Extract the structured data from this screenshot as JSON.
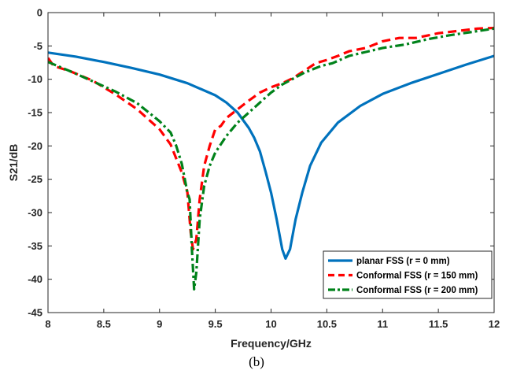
{
  "caption": "(b)",
  "chart_data": {
    "type": "line",
    "xlabel": "Frequency/GHz",
    "ylabel": "S21/dB",
    "xlim": [
      8,
      12
    ],
    "ylim": [
      -45,
      0
    ],
    "xticks": [
      "8",
      "8.5",
      "9",
      "9.5",
      "10",
      "10.5",
      "11",
      "11.5",
      "12"
    ],
    "yticks": [
      "0",
      "-5",
      "-10",
      "-15",
      "-20",
      "-25",
      "-30",
      "-35",
      "-40",
      "-45"
    ],
    "grid": false,
    "legend_position": "bottom-right",
    "series": [
      {
        "name": "planar FSS (r = 0 mm)",
        "color": "#0072BD",
        "style": "solid",
        "points": [
          [
            8.0,
            -6.0
          ],
          [
            8.25,
            -6.6
          ],
          [
            8.5,
            -7.4
          ],
          [
            8.75,
            -8.3
          ],
          [
            9.0,
            -9.3
          ],
          [
            9.25,
            -10.6
          ],
          [
            9.5,
            -12.4
          ],
          [
            9.6,
            -13.5
          ],
          [
            9.7,
            -15.0
          ],
          [
            9.8,
            -17.3
          ],
          [
            9.85,
            -18.8
          ],
          [
            9.9,
            -20.8
          ],
          [
            9.95,
            -23.8
          ],
          [
            10.0,
            -27.0
          ],
          [
            10.05,
            -31.0
          ],
          [
            10.1,
            -35.5
          ],
          [
            10.13,
            -36.9
          ],
          [
            10.17,
            -35.5
          ],
          [
            10.22,
            -31.0
          ],
          [
            10.28,
            -27.0
          ],
          [
            10.35,
            -23.0
          ],
          [
            10.45,
            -19.5
          ],
          [
            10.6,
            -16.5
          ],
          [
            10.8,
            -14.0
          ],
          [
            11.0,
            -12.2
          ],
          [
            11.25,
            -10.6
          ],
          [
            11.5,
            -9.2
          ],
          [
            11.75,
            -7.8
          ],
          [
            12.0,
            -6.5
          ]
        ]
      },
      {
        "name": "Conformal FSS (r = 150 mm)",
        "color": "#FF0000",
        "style": "dashed",
        "points": [
          [
            8.0,
            -6.8
          ],
          [
            8.05,
            -8.0
          ],
          [
            8.2,
            -8.8
          ],
          [
            8.4,
            -10.2
          ],
          [
            8.6,
            -12.2
          ],
          [
            8.8,
            -14.5
          ],
          [
            9.0,
            -17.5
          ],
          [
            9.1,
            -19.8
          ],
          [
            9.2,
            -24.0
          ],
          [
            9.25,
            -27.0
          ],
          [
            9.28,
            -33.0
          ],
          [
            9.3,
            -35.5
          ],
          [
            9.33,
            -34.0
          ],
          [
            9.36,
            -28.0
          ],
          [
            9.4,
            -23.0
          ],
          [
            9.45,
            -20.0
          ],
          [
            9.5,
            -17.5
          ],
          [
            9.55,
            -17.0
          ],
          [
            9.6,
            -15.8
          ],
          [
            9.7,
            -14.5
          ],
          [
            9.8,
            -13.2
          ],
          [
            9.9,
            -12.0
          ],
          [
            10.0,
            -11.2
          ],
          [
            10.1,
            -10.6
          ],
          [
            10.2,
            -9.8
          ],
          [
            10.3,
            -8.7
          ],
          [
            10.4,
            -7.6
          ],
          [
            10.5,
            -7.1
          ],
          [
            10.6,
            -6.5
          ],
          [
            10.7,
            -5.8
          ],
          [
            10.85,
            -5.3
          ],
          [
            11.0,
            -4.3
          ],
          [
            11.15,
            -3.8
          ],
          [
            11.3,
            -3.8
          ],
          [
            11.5,
            -3.1
          ],
          [
            11.7,
            -2.7
          ],
          [
            11.85,
            -2.4
          ],
          [
            12.0,
            -2.3
          ]
        ]
      },
      {
        "name": "Conformal FSS (r = 200 mm)",
        "color": "#00821A",
        "style": "dashdot",
        "points": [
          [
            8.0,
            -7.4
          ],
          [
            8.2,
            -8.8
          ],
          [
            8.4,
            -10.3
          ],
          [
            8.6,
            -11.8
          ],
          [
            8.8,
            -13.6
          ],
          [
            9.0,
            -16.3
          ],
          [
            9.1,
            -18.0
          ],
          [
            9.15,
            -20.0
          ],
          [
            9.2,
            -22.7
          ],
          [
            9.25,
            -27.0
          ],
          [
            9.27,
            -28.0
          ],
          [
            9.29,
            -35.5
          ],
          [
            9.31,
            -41.5
          ],
          [
            9.33,
            -39.0
          ],
          [
            9.36,
            -31.0
          ],
          [
            9.4,
            -26.0
          ],
          [
            9.45,
            -23.0
          ],
          [
            9.5,
            -21.0
          ],
          [
            9.6,
            -18.5
          ],
          [
            9.7,
            -16.5
          ],
          [
            9.8,
            -15.0
          ],
          [
            9.9,
            -13.5
          ],
          [
            10.0,
            -12.0
          ],
          [
            10.1,
            -10.8
          ],
          [
            10.2,
            -9.9
          ],
          [
            10.3,
            -9.0
          ],
          [
            10.45,
            -8.0
          ],
          [
            10.55,
            -7.6
          ],
          [
            10.7,
            -6.5
          ],
          [
            10.85,
            -5.9
          ],
          [
            11.0,
            -5.3
          ],
          [
            11.2,
            -4.8
          ],
          [
            11.4,
            -4.0
          ],
          [
            11.6,
            -3.4
          ],
          [
            11.8,
            -2.9
          ],
          [
            12.0,
            -2.4
          ]
        ]
      }
    ]
  }
}
